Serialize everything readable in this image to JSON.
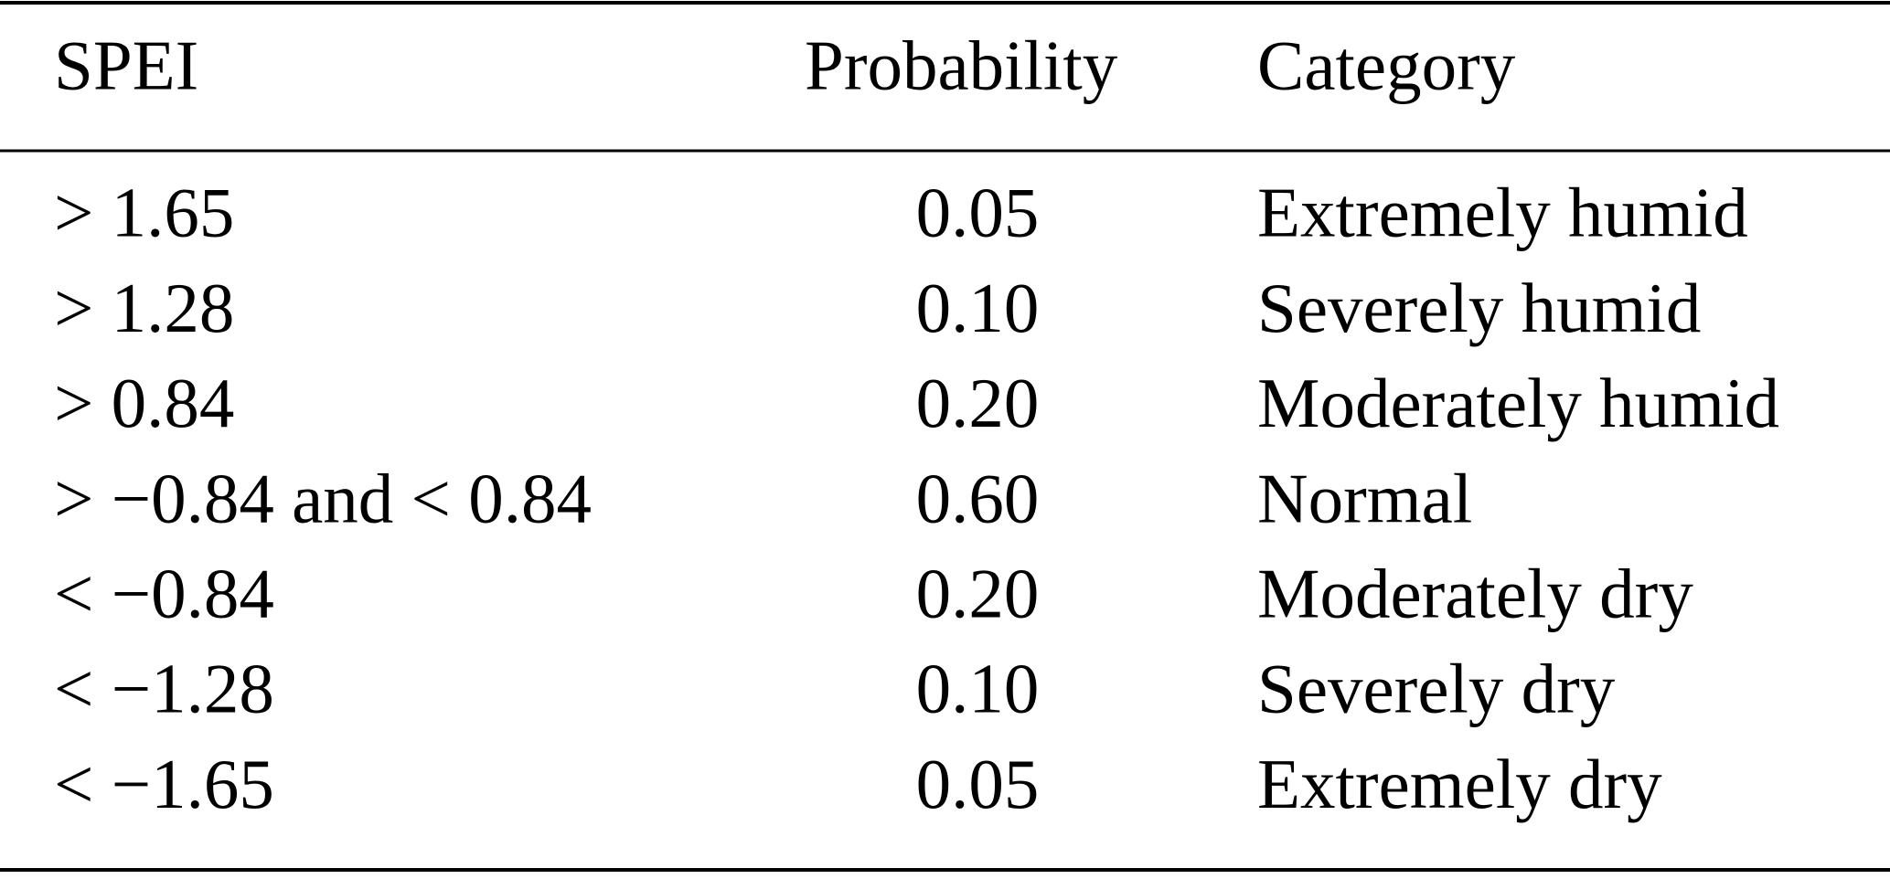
{
  "table": {
    "header": [
      "SPEI",
      "Probability",
      "Category"
    ],
    "rows": [
      [
        "> 1.65",
        "0.05",
        "Extremely humid"
      ],
      [
        "> 1.28",
        "0.10",
        "Severely humid"
      ],
      [
        "> 0.84",
        "0.20",
        "Moderately humid"
      ],
      [
        "> −0.84 and < 0.84",
        "0.60",
        "Normal"
      ],
      [
        "< −0.84",
        "0.20",
        "Moderately dry"
      ],
      [
        "< −1.28",
        "0.10",
        "Severely dry"
      ],
      [
        "< −1.65",
        "0.05",
        "Extremely dry"
      ]
    ]
  }
}
